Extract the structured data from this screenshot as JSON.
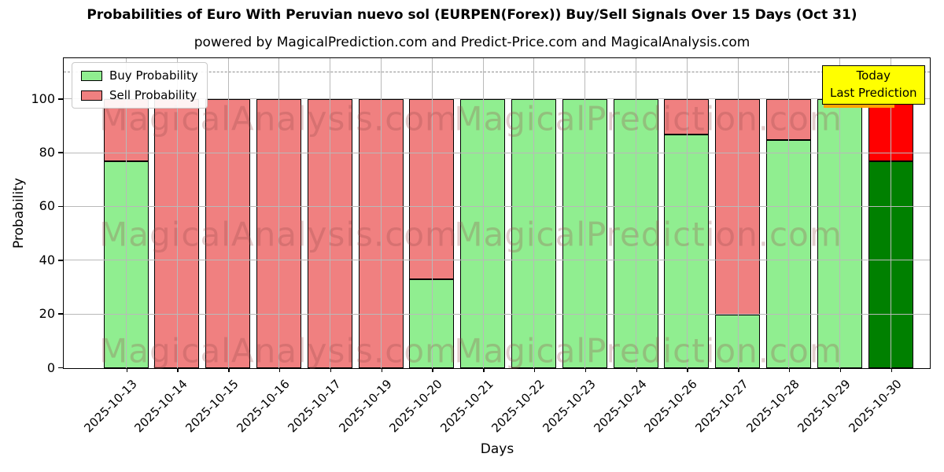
{
  "chart_data": {
    "type": "bar",
    "stacked": true,
    "title": "Probabilities of Euro With Peruvian nuevo sol (EURPEN(Forex)) Buy/Sell Signals Over 15 Days (Oct 31)",
    "subtitle": "powered by MagicalPrediction.com and Predict-Price.com and MagicalAnalysis.com",
    "xlabel": "Days",
    "ylabel": "Probability",
    "ylim": [
      0,
      115
    ],
    "yticks": [
      0,
      20,
      40,
      60,
      80,
      100
    ],
    "dashed_line_y": 110,
    "grid": true,
    "legend_position": "upper left",
    "categories": [
      "2025-10-13",
      "2025-10-14",
      "2025-10-15",
      "2025-10-16",
      "2025-10-17",
      "2025-10-19",
      "2025-10-20",
      "2025-10-21",
      "2025-10-22",
      "2025-10-23",
      "2025-10-24",
      "2025-10-26",
      "2025-10-27",
      "2025-10-28",
      "2025-10-29",
      "2025-10-30"
    ],
    "series": [
      {
        "name": "Buy Probability",
        "color": "#90ee90",
        "values": [
          77,
          0,
          0,
          0,
          0,
          0,
          33,
          100,
          100,
          100,
          100,
          87,
          20,
          85,
          100,
          77
        ]
      },
      {
        "name": "Sell Probability",
        "color": "#f08080",
        "values": [
          23,
          100,
          100,
          100,
          100,
          100,
          67,
          0,
          0,
          0,
          0,
          13,
          80,
          15,
          0,
          23
        ]
      }
    ],
    "today_bar": {
      "category": "2025-10-30",
      "index": 15,
      "buy_color": "#008000",
      "sell_color": "#ff0000"
    },
    "annotation": {
      "line1": "Today",
      "line2": "Last Prediction",
      "bg_color": "#ffff00",
      "accent_color": "#ffa500"
    },
    "watermarks": {
      "left_text": "MagicalAnalysis.com",
      "right_text": "MagicalPrediction.com",
      "rows": 3
    }
  }
}
